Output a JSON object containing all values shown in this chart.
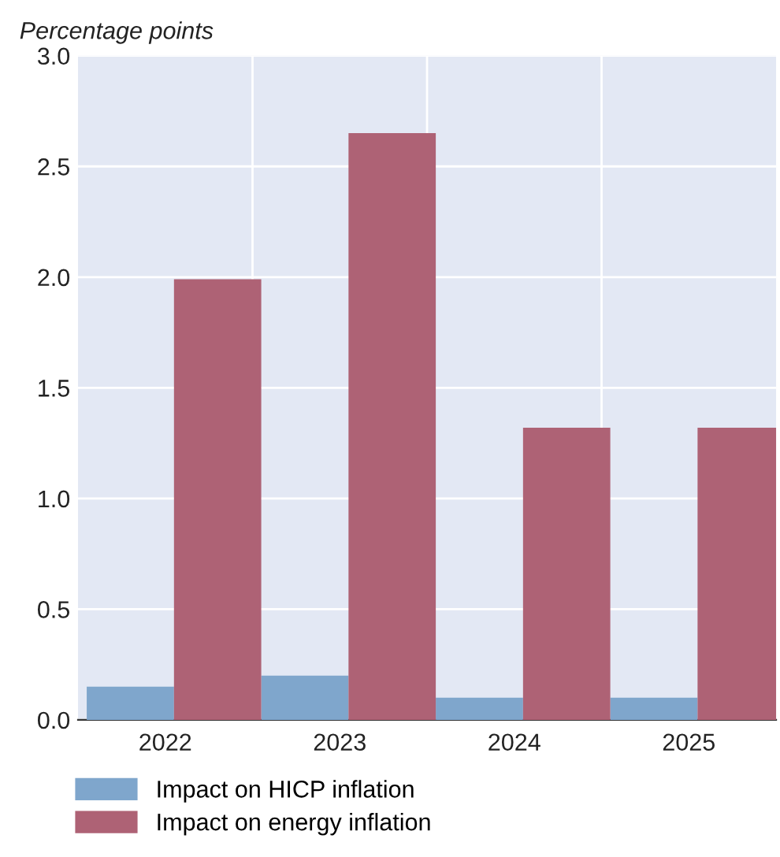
{
  "chart_data": {
    "type": "bar",
    "ylabel": "Percentage points",
    "categories": [
      "2022",
      "2023",
      "2024",
      "2025"
    ],
    "series": [
      {
        "name": "Impact on HICP inflation",
        "color": "#7fa6cc",
        "values": [
          0.15,
          0.2,
          0.1,
          0.1
        ]
      },
      {
        "name": "Impact on energy inflation",
        "color": "#ae6275",
        "values": [
          1.99,
          2.65,
          1.32,
          1.32
        ]
      }
    ],
    "ylim": [
      0,
      3
    ],
    "yticks": [
      {
        "value": 0,
        "label": "0.0"
      },
      {
        "value": 0.5,
        "label": "0.5"
      },
      {
        "value": 1,
        "label": "1.0"
      },
      {
        "value": 1.5,
        "label": "1.5"
      },
      {
        "value": 2,
        "label": "2.0"
      },
      {
        "value": 2.5,
        "label": "2.5"
      },
      {
        "value": 3,
        "label": "3.0"
      }
    ],
    "grid": true,
    "legend": "bottom"
  }
}
